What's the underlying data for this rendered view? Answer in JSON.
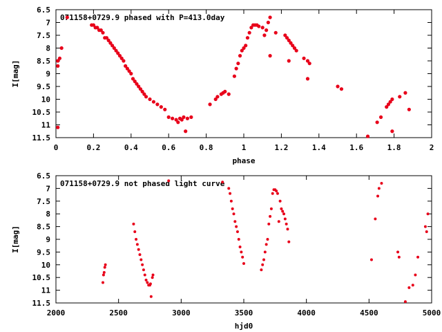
{
  "chart_data": [
    {
      "type": "scatter",
      "title": "071158+0729.9 phased with P=413.0day",
      "xlabel": "phase",
      "ylabel": "I[mag]",
      "xlim": [
        0,
        2
      ],
      "ylim": [
        11.5,
        6.5
      ],
      "y_inverted": true,
      "xticks": [
        0,
        0.2,
        0.4,
        0.6,
        0.8,
        1,
        1.2,
        1.4,
        1.6,
        1.8,
        2
      ],
      "xtick_labels": [
        "0",
        "0.2",
        "0.4",
        "0.6",
        "0.8",
        "1",
        "1.2",
        "1.4",
        "1.6",
        "1.8",
        "2"
      ],
      "yticks": [
        6.5,
        7,
        7.5,
        8,
        8.5,
        9,
        9.5,
        10,
        10.5,
        11,
        11.5
      ],
      "ytick_labels": [
        "6.5",
        "7",
        "7.5",
        "8",
        "8.5",
        "9",
        "9.5",
        "10",
        "10.5",
        "11",
        "11.5"
      ],
      "grid": false,
      "color": "#e8001a",
      "points": [
        [
          0.01,
          8.5
        ],
        [
          0.02,
          8.4
        ],
        [
          0.01,
          8.7
        ],
        [
          0.01,
          11.1
        ],
        [
          0.03,
          8.0
        ],
        [
          0.06,
          6.8
        ],
        [
          0.19,
          7.1
        ],
        [
          0.2,
          7.1
        ],
        [
          0.21,
          7.2
        ],
        [
          0.22,
          7.2
        ],
        [
          0.23,
          7.3
        ],
        [
          0.24,
          7.3
        ],
        [
          0.25,
          7.4
        ],
        [
          0.26,
          7.6
        ],
        [
          0.27,
          7.6
        ],
        [
          0.28,
          7.7
        ],
        [
          0.29,
          7.8
        ],
        [
          0.3,
          7.9
        ],
        [
          0.31,
          8.0
        ],
        [
          0.32,
          8.1
        ],
        [
          0.33,
          8.2
        ],
        [
          0.34,
          8.3
        ],
        [
          0.35,
          8.4
        ],
        [
          0.36,
          8.5
        ],
        [
          0.37,
          8.7
        ],
        [
          0.38,
          8.8
        ],
        [
          0.39,
          8.9
        ],
        [
          0.4,
          9.0
        ],
        [
          0.41,
          9.2
        ],
        [
          0.42,
          9.3
        ],
        [
          0.43,
          9.4
        ],
        [
          0.44,
          9.5
        ],
        [
          0.45,
          9.6
        ],
        [
          0.46,
          9.7
        ],
        [
          0.47,
          9.8
        ],
        [
          0.48,
          9.9
        ],
        [
          0.5,
          10.0
        ],
        [
          0.52,
          10.1
        ],
        [
          0.54,
          10.2
        ],
        [
          0.56,
          10.3
        ],
        [
          0.58,
          10.4
        ],
        [
          0.6,
          10.7
        ],
        [
          0.62,
          10.75
        ],
        [
          0.64,
          10.8
        ],
        [
          0.65,
          10.9
        ],
        [
          0.66,
          10.75
        ],
        [
          0.67,
          10.8
        ],
        [
          0.68,
          10.7
        ],
        [
          0.69,
          11.25
        ],
        [
          0.7,
          10.75
        ],
        [
          0.72,
          10.7
        ],
        [
          0.82,
          10.2
        ],
        [
          0.85,
          10.0
        ],
        [
          0.86,
          9.9
        ],
        [
          0.88,
          9.8
        ],
        [
          0.89,
          9.75
        ],
        [
          0.9,
          9.7
        ],
        [
          0.92,
          9.8
        ],
        [
          0.95,
          9.1
        ],
        [
          0.96,
          8.8
        ],
        [
          0.97,
          8.6
        ],
        [
          0.98,
          8.3
        ],
        [
          0.99,
          8.1
        ],
        [
          1.0,
          8.0
        ],
        [
          1.01,
          7.9
        ],
        [
          1.02,
          7.6
        ],
        [
          1.03,
          7.4
        ],
        [
          1.04,
          7.2
        ],
        [
          1.05,
          7.1
        ],
        [
          1.06,
          7.1
        ],
        [
          1.07,
          7.1
        ],
        [
          1.08,
          7.15
        ],
        [
          1.1,
          7.2
        ],
        [
          1.11,
          7.5
        ],
        [
          1.12,
          7.3
        ],
        [
          1.13,
          7.0
        ],
        [
          1.14,
          6.8
        ],
        [
          1.14,
          8.3
        ],
        [
          1.17,
          7.4
        ],
        [
          1.22,
          7.5
        ],
        [
          1.23,
          7.6
        ],
        [
          1.24,
          7.7
        ],
        [
          1.25,
          7.8
        ],
        [
          1.26,
          7.9
        ],
        [
          1.27,
          8.0
        ],
        [
          1.28,
          8.1
        ],
        [
          1.24,
          8.5
        ],
        [
          1.32,
          8.4
        ],
        [
          1.34,
          8.5
        ],
        [
          1.35,
          8.6
        ],
        [
          1.34,
          9.2
        ],
        [
          1.5,
          9.5
        ],
        [
          1.52,
          9.6
        ],
        [
          1.66,
          11.45
        ],
        [
          1.71,
          10.9
        ],
        [
          1.73,
          10.7
        ],
        [
          1.76,
          10.3
        ],
        [
          1.77,
          10.2
        ],
        [
          1.78,
          10.1
        ],
        [
          1.79,
          10.0
        ],
        [
          1.79,
          11.25
        ],
        [
          1.83,
          9.9
        ],
        [
          1.86,
          9.75
        ],
        [
          1.88,
          10.4
        ]
      ]
    },
    {
      "type": "scatter",
      "title": "071158+0729.9 not phased light curve",
      "xlabel": "hjd0",
      "ylabel": "I[mag]",
      "xlim": [
        2000,
        5000
      ],
      "ylim": [
        11.5,
        6.5
      ],
      "y_inverted": true,
      "xticks": [
        2000,
        2500,
        3000,
        3500,
        4000,
        4500,
        5000
      ],
      "xtick_labels": [
        "2000",
        "2500",
        "3000",
        "3500",
        "4000",
        "4500",
        "5000"
      ],
      "yticks": [
        6.5,
        7,
        7.5,
        8,
        8.5,
        9,
        9.5,
        10,
        10.5,
        11,
        11.5
      ],
      "ytick_labels": [
        "6.5",
        "7",
        "7.5",
        "8",
        "8.5",
        "9",
        "9.5",
        "10",
        "10.5",
        "11",
        "11.5"
      ],
      "grid": false,
      "color": "#e8001a",
      "points": [
        [
          2375,
          10.7
        ],
        [
          2380,
          10.4
        ],
        [
          2385,
          10.3
        ],
        [
          2390,
          10.1
        ],
        [
          2395,
          10.0
        ],
        [
          2620,
          8.4
        ],
        [
          2630,
          8.7
        ],
        [
          2640,
          9.0
        ],
        [
          2650,
          9.2
        ],
        [
          2660,
          9.4
        ],
        [
          2670,
          9.6
        ],
        [
          2680,
          9.8
        ],
        [
          2690,
          10.0
        ],
        [
          2700,
          10.2
        ],
        [
          2710,
          10.4
        ],
        [
          2720,
          10.6
        ],
        [
          2730,
          10.7
        ],
        [
          2740,
          10.8
        ],
        [
          2750,
          10.8
        ],
        [
          2755,
          10.75
        ],
        [
          2760,
          11.25
        ],
        [
          2770,
          10.5
        ],
        [
          2775,
          10.4
        ],
        [
          2900,
          6.7
        ],
        [
          3330,
          6.75
        ],
        [
          3380,
          7.0
        ],
        [
          3390,
          7.2
        ],
        [
          3400,
          7.5
        ],
        [
          3410,
          7.8
        ],
        [
          3420,
          8.0
        ],
        [
          3430,
          8.3
        ],
        [
          3440,
          8.5
        ],
        [
          3450,
          8.7
        ],
        [
          3460,
          9.0
        ],
        [
          3470,
          9.3
        ],
        [
          3480,
          9.5
        ],
        [
          3490,
          9.7
        ],
        [
          3500,
          9.95
        ],
        [
          3640,
          10.2
        ],
        [
          3650,
          10.0
        ],
        [
          3660,
          9.8
        ],
        [
          3670,
          9.5
        ],
        [
          3680,
          9.2
        ],
        [
          3690,
          9.0
        ],
        [
          3700,
          8.4
        ],
        [
          3710,
          8.1
        ],
        [
          3720,
          7.8
        ],
        [
          3730,
          7.2
        ],
        [
          3740,
          7.05
        ],
        [
          3750,
          7.05
        ],
        [
          3760,
          7.1
        ],
        [
          3770,
          7.2
        ],
        [
          3780,
          8.3
        ],
        [
          3790,
          7.5
        ],
        [
          3800,
          7.8
        ],
        [
          3810,
          7.9
        ],
        [
          3820,
          8.0
        ],
        [
          3830,
          8.2
        ],
        [
          3840,
          8.4
        ],
        [
          3850,
          8.6
        ],
        [
          3860,
          9.1
        ],
        [
          4520,
          9.8
        ],
        [
          4550,
          8.2
        ],
        [
          4570,
          7.3
        ],
        [
          4580,
          7.0
        ],
        [
          4600,
          6.8
        ],
        [
          4730,
          9.5
        ],
        [
          4740,
          9.7
        ],
        [
          4790,
          11.45
        ],
        [
          4820,
          10.9
        ],
        [
          4850,
          10.8
        ],
        [
          4870,
          10.4
        ],
        [
          4890,
          9.7
        ],
        [
          4950,
          8.5
        ],
        [
          4970,
          8.0
        ],
        [
          4960,
          8.7
        ]
      ]
    }
  ]
}
